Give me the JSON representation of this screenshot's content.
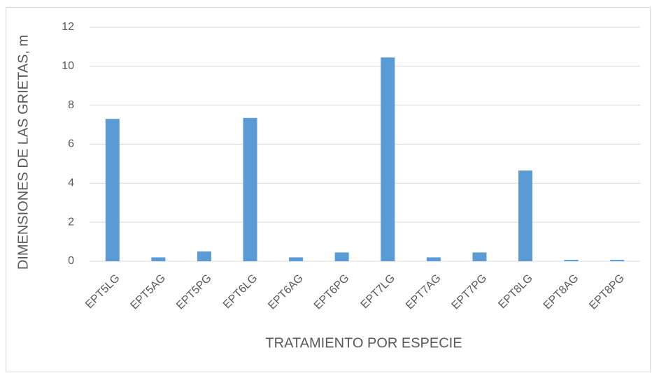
{
  "chart_data": {
    "type": "bar",
    "x_label": "TRATAMIENTO POR ESPECIE",
    "y_label": "DIMENSIONES DE LAS GRIETAS, m",
    "categories": [
      "EPT5LG",
      "EPT5AG",
      "EPT5PG",
      "EPT6LG",
      "EPT6AG",
      "EPT6PG",
      "EPT7LG",
      "EPT7AG",
      "EPT7PG",
      "EPT8LG",
      "EPT8AG",
      "EPT8PG"
    ],
    "values": [
      7.3,
      0.2,
      0.5,
      7.35,
      0.2,
      0.45,
      10.45,
      0.2,
      0.45,
      4.65,
      0.07,
      0.07
    ],
    "color": "#5b9bd5",
    "ylim": [
      0,
      12
    ],
    "yticks": [
      0,
      2,
      4,
      6,
      8,
      10,
      12
    ],
    "grid": true
  }
}
